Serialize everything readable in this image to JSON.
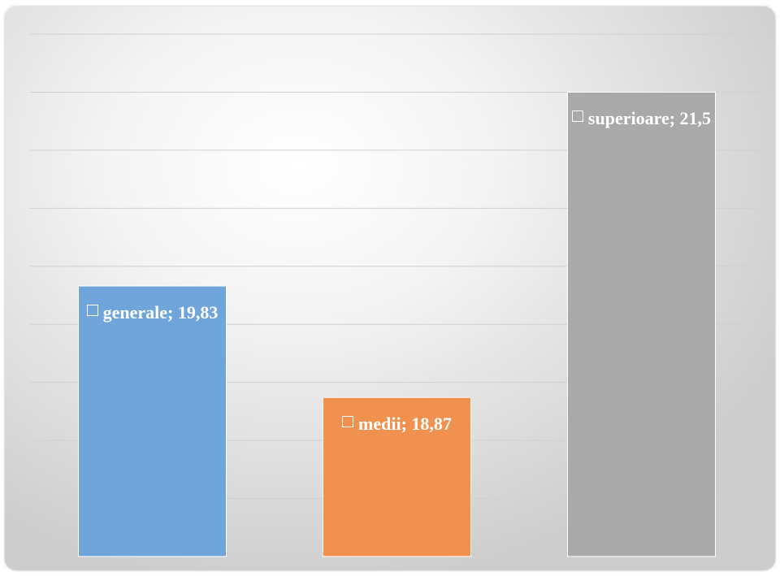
{
  "chart_data": {
    "type": "bar",
    "categories": [
      "generale",
      "medii",
      "superioare"
    ],
    "series": [
      {
        "values": [
          19.83,
          18.87,
          21.5
        ],
        "value_labels": [
          "generale; 19,83",
          "medii; 18,87",
          "superioare; 21,5"
        ],
        "colors": [
          "#6fa5da",
          "#f0914f",
          "#a9a9a9"
        ]
      }
    ],
    "ylim": [
      17.5,
      22
    ],
    "yticks": [
      17.5,
      18,
      18.5,
      19,
      19.5,
      20,
      20.5,
      21,
      21.5,
      22
    ],
    "grid": true
  }
}
